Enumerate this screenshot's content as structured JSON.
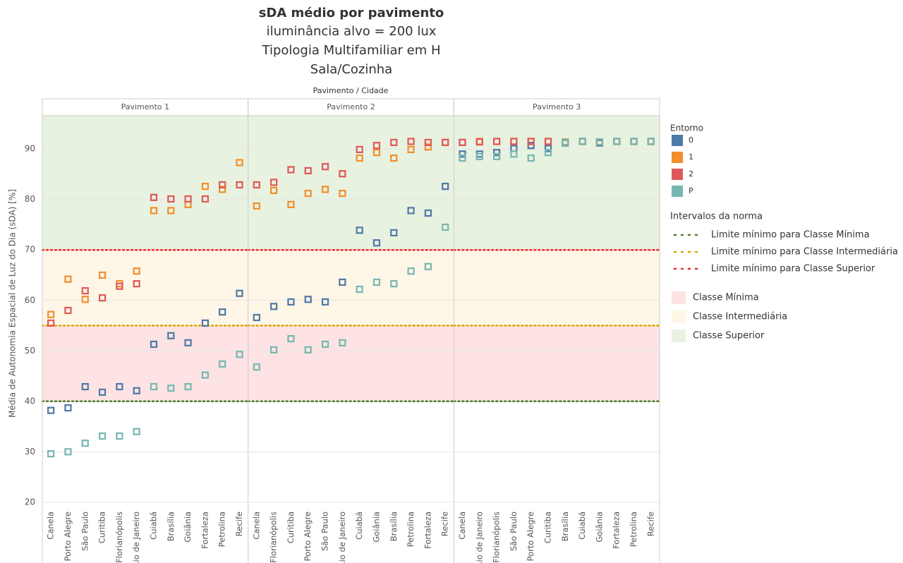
{
  "title": "sDA médio por pavimento",
  "subtitle": [
    "iluminância alvo = 200 lux",
    "Tipologia Multifamiliar em H",
    "Sala/Cozinha"
  ],
  "facet_label": "Pavimento / Cidade",
  "y_label": "Média de Autonomia Espacial de Luz do Dia (sDA) [%]",
  "legend": {
    "title": "Entorno",
    "norm_title": "Intervalos da norma"
  },
  "thresholds": [
    {
      "name": "Limite mínimo para Classe Mínima",
      "value": 40,
      "color": "#4f7a28"
    },
    {
      "name": "Limite mínimo para Classe Intermediária",
      "value": 55,
      "color": "#d9a300"
    },
    {
      "name": "Limite mínimo para Classe Superior",
      "value": 70,
      "color": "#f02a2a"
    }
  ],
  "bands": [
    {
      "name": "Classe Mínima",
      "from": 40,
      "to": 55,
      "color": "#fde3e3"
    },
    {
      "name": "Classe Intermediária",
      "from": 55,
      "to": 70,
      "color": "#fef6e6"
    },
    {
      "name": "Classe Superior",
      "from": 70,
      "to": 96.6,
      "color": "#e8f2e0"
    }
  ],
  "chart_data": [
    {
      "type": "scatter",
      "title": "Pavimento 1",
      "categories": [
        "Canela",
        "Porto Alegre",
        "São Paulo",
        "Curitiba",
        "Florianópolis",
        "Rio de Janeiro",
        "Cuiabá",
        "Brasília",
        "Goiânia",
        "Fortaleza",
        "Petrolina",
        "Recife"
      ],
      "series": [
        {
          "name": "0",
          "color": "#4e79a7",
          "values": [
            38.2,
            38.7,
            42.9,
            41.8,
            42.9,
            42.1,
            51.3,
            53.0,
            51.6,
            55.5,
            57.7,
            61.4
          ]
        },
        {
          "name": "1",
          "color": "#f28e2b",
          "values": [
            57.2,
            64.2,
            60.2,
            65.0,
            63.3,
            65.8,
            77.8,
            77.8,
            79.0,
            82.6,
            82.0,
            87.3
          ]
        },
        {
          "name": "2",
          "color": "#e15759",
          "values": [
            55.5,
            58.0,
            61.9,
            60.5,
            62.8,
            63.3,
            80.4,
            80.1,
            80.1,
            80.1,
            82.9,
            82.9
          ]
        },
        {
          "name": "P",
          "color": "#76b7b2",
          "values": [
            29.6,
            30.0,
            31.7,
            33.1,
            33.1,
            34.0,
            42.9,
            42.6,
            42.9,
            45.2,
            47.4,
            49.3
          ]
        }
      ],
      "ylim": [
        19,
        96.6
      ],
      "yticks": [
        20,
        30,
        40,
        50,
        60,
        70,
        80,
        90
      ],
      "grid": true
    },
    {
      "type": "scatter",
      "title": "Pavimento 2",
      "categories": [
        "Canela",
        "Florianópolis",
        "Curitiba",
        "Porto Alegre",
        "São Paulo",
        "Rio de Janeiro",
        "Cuiabá",
        "Goiânia",
        "Brasília",
        "Petrolina",
        "Fortaleza",
        "Recife"
      ],
      "series": [
        {
          "name": "0",
          "color": "#4e79a7",
          "values": [
            56.6,
            58.8,
            59.7,
            60.2,
            59.7,
            63.6,
            73.9,
            71.4,
            73.4,
            77.8,
            77.3,
            82.6
          ]
        },
        {
          "name": "1",
          "color": "#f28e2b",
          "values": [
            78.7,
            81.8,
            79.0,
            81.2,
            82.0,
            81.2,
            88.2,
            89.3,
            88.2,
            89.9,
            90.4,
            91.3
          ]
        },
        {
          "name": "2",
          "color": "#e15759",
          "values": [
            82.9,
            83.4,
            85.9,
            85.7,
            86.5,
            85.1,
            89.9,
            90.7,
            91.3,
            91.5,
            91.3,
            91.3
          ]
        },
        {
          "name": "P",
          "color": "#76b7b2",
          "values": [
            46.8,
            50.2,
            52.4,
            50.2,
            51.3,
            51.6,
            62.2,
            63.6,
            63.3,
            65.8,
            66.7,
            74.5
          ]
        }
      ],
      "ylim": [
        19,
        96.6
      ],
      "yticks": [
        20,
        30,
        40,
        50,
        60,
        70,
        80,
        90
      ],
      "grid": true
    },
    {
      "type": "scatter",
      "title": "Pavimento 3",
      "categories": [
        "Canela",
        "Rio de Janeiro",
        "Florianópolis",
        "São Paulo",
        "Porto Alegre",
        "Curitiba",
        "Brasília",
        "Cuiabá",
        "Goiânia",
        "Fortaleza",
        "Petrolina",
        "Recife"
      ],
      "series": [
        {
          "name": "0",
          "color": "#4e79a7",
          "values": [
            89.0,
            89.0,
            89.3,
            90.1,
            90.7,
            90.1,
            91.2,
            91.5,
            91.2,
            91.5,
            91.5,
            91.5
          ]
        },
        {
          "name": "1",
          "color": "#f28e2b",
          "values": [
            91.3,
            91.5,
            91.5,
            91.5,
            91.5,
            91.5,
            91.4,
            91.5,
            91.4,
            91.5,
            91.5,
            91.5
          ]
        },
        {
          "name": "2",
          "color": "#e15759",
          "values": [
            91.3,
            91.4,
            91.5,
            91.5,
            91.5,
            91.5,
            91.3,
            91.5,
            91.4,
            91.5,
            91.5,
            91.5
          ]
        },
        {
          "name": "P",
          "color": "#76b7b2",
          "values": [
            88.2,
            88.5,
            88.5,
            89.0,
            88.2,
            89.3,
            91.3,
            91.5,
            91.4,
            91.5,
            91.5,
            91.5
          ]
        }
      ],
      "ylim": [
        19,
        96.6
      ],
      "yticks": [
        20,
        30,
        40,
        50,
        60,
        70,
        80,
        90
      ],
      "grid": true
    }
  ]
}
